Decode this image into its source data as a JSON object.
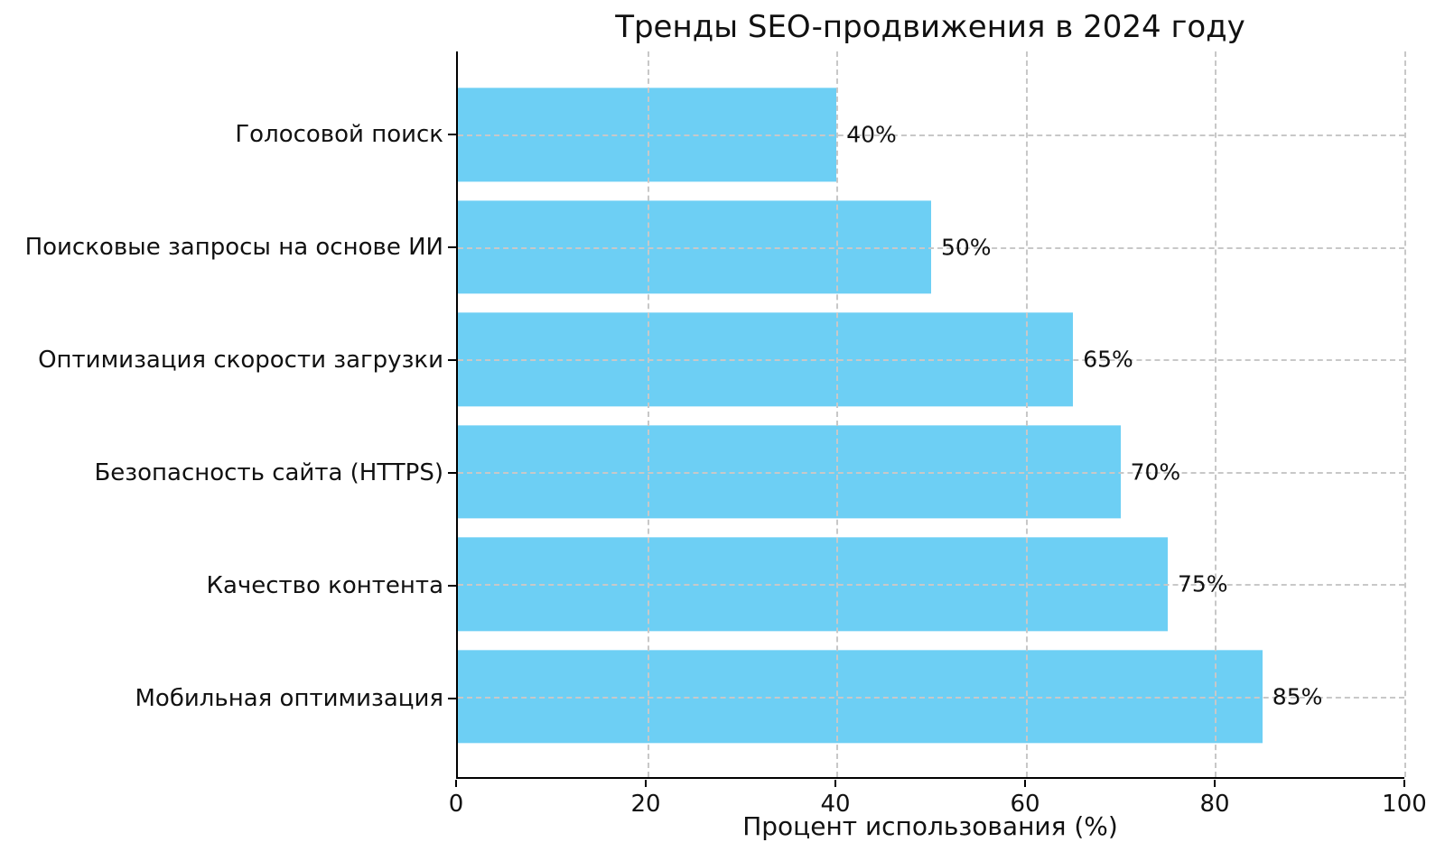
{
  "chart_data": {
    "type": "bar",
    "orientation": "horizontal",
    "title": "Тренды SEO-продвижения в 2024 году",
    "xlabel": "Процент использования (%)",
    "ylabel": "",
    "categories": [
      "Голосовой поиск",
      "Поисковые запросы на основе ИИ",
      "Оптимизация скорости загрузки",
      "Безопасность сайта (HTTPS)",
      "Качество контента",
      "Мобильная оптимизация"
    ],
    "values": [
      40,
      50,
      65,
      70,
      75,
      85
    ],
    "value_labels": [
      "40%",
      "50%",
      "65%",
      "70%",
      "75%",
      "85%"
    ],
    "xlim": [
      0,
      100
    ],
    "xticks": [
      0,
      20,
      40,
      60,
      80,
      100
    ],
    "grid": "dashed gridlines on both axes, drawn above bars",
    "legend": "none",
    "bar_color": "#6dcff4",
    "grid_color": "#c8c8c8",
    "axis_color": "#000000",
    "text_color": "#111111",
    "background_color": "#ffffff"
  }
}
